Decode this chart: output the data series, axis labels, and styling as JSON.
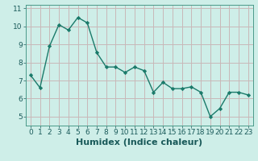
{
  "x": [
    0,
    1,
    2,
    3,
    4,
    5,
    6,
    7,
    8,
    9,
    10,
    11,
    12,
    13,
    14,
    15,
    16,
    17,
    18,
    19,
    20,
    21,
    22,
    23
  ],
  "y": [
    7.3,
    6.6,
    8.9,
    10.1,
    9.8,
    10.5,
    10.2,
    8.55,
    7.75,
    7.75,
    7.45,
    7.75,
    7.55,
    6.35,
    6.9,
    6.55,
    6.55,
    6.65,
    6.35,
    5.0,
    5.45,
    6.35,
    6.35,
    6.2
  ],
  "line_color": "#1a7a6a",
  "marker": "D",
  "marker_size": 2.2,
  "line_width": 1.0,
  "xlabel": "Humidex (Indice chaleur)",
  "xlabel_fontsize": 8,
  "xlim": [
    -0.5,
    23.5
  ],
  "ylim": [
    4.5,
    11.2
  ],
  "yticks": [
    5,
    6,
    7,
    8,
    9,
    10,
    11
  ],
  "xticks": [
    0,
    1,
    2,
    3,
    4,
    5,
    6,
    7,
    8,
    9,
    10,
    11,
    12,
    13,
    14,
    15,
    16,
    17,
    18,
    19,
    20,
    21,
    22,
    23
  ],
  "bg_color": "#ceeee8",
  "grid_color": "#c8b8b8",
  "tick_fontsize": 6.5
}
